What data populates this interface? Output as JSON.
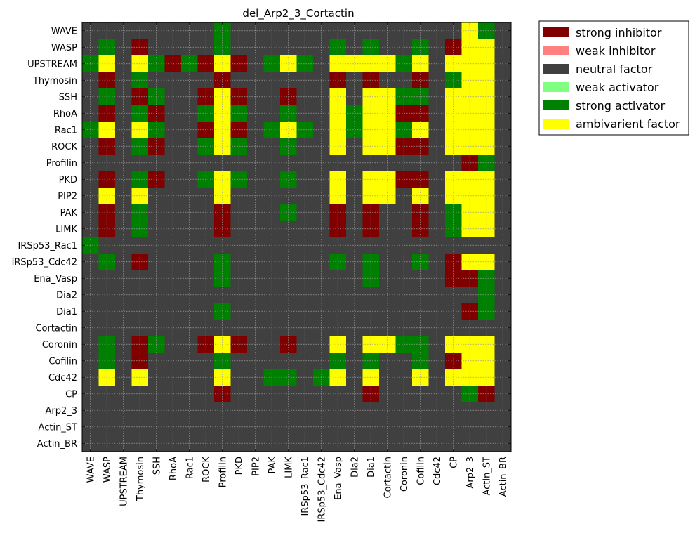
{
  "chart_data": {
    "type": "heatmap",
    "title": "del_Arp2_3_Cortactin",
    "rows": [
      "WAVE",
      "WASP",
      "UPSTREAM",
      "Thymosin",
      "SSH",
      "RhoA",
      "Rac1",
      "ROCK",
      "Profilin",
      "PKD",
      "PIP2",
      "PAK",
      "LIMK",
      "IRSp53_Rac1",
      "IRSp53_Cdc42",
      "Ena_Vasp",
      "Dia2",
      "Dia1",
      "Cortactin",
      "Coronin",
      "Cofilin",
      "Cdc42",
      "CP",
      "Arp2_3",
      "Actin_ST",
      "Actin_BR"
    ],
    "columns": [
      "WAVE",
      "WASP",
      "UPSTREAM",
      "Thymosin",
      "SSH",
      "RhoA",
      "Rac1",
      "ROCK",
      "Profilin",
      "PKD",
      "PIP2",
      "PAK",
      "LIMK",
      "IRSp53_Rac1",
      "IRSp53_Cdc42",
      "Ena_Vasp",
      "Dia2",
      "Dia1",
      "Cortactin",
      "Coronin",
      "Cofilin",
      "Cdc42",
      "CP",
      "Arp2_3",
      "Actin_ST",
      "Actin_BR"
    ],
    "categories": [
      {
        "code": "S",
        "label": "strong inhibitor",
        "color": "#800000"
      },
      {
        "code": "w",
        "label": "weak inhibitor",
        "color": "#ff8080"
      },
      {
        "code": "n",
        "label": "neutral factor",
        "color": "#404040"
      },
      {
        "code": "a",
        "label": "weak activator",
        "color": "#80ff80"
      },
      {
        "code": "A",
        "label": "strong activator",
        "color": "#008000"
      },
      {
        "code": "Y",
        "label": "ambivarient factor",
        "color": "#ffff00"
      }
    ],
    "matrix": [
      "nnnnnnnnAnnnnnnnnnnnnnnYAn",
      "nAnSnnnnAnnnnnnAnAnnAnSYYn",
      "AYnYASASYSnAYAnYYYYAYnYYYn",
      "nSnAnnnnSnnnnnnSnSnnSnAYYn",
      "nAnSAnnSYSnnSnnYnYYAAnYYYn",
      "nSnASnnAYAnnAnnYAYYSSnYYYn",
      "AYnYAnnSYSnAYAnYAYYAYnYYYn",
      "nSnASnnAYAnnAnnYnYYSSnYYYn",
      "nnnnnnnnnnnnnnnnnnnnnnnSAn",
      "nSnASnnAYAnnAnnYnYYSSnYYYn",
      "nYnYnnnnYnnnnnnYnYYnYnYYYn",
      "nSnAnnnnSnnnAnnSnSnnSnAYYn",
      "nSnAnnnnSnnnnnnSnSnnSnAYYn",
      "Annnnnnnnnnnnnnnnnnnnnnnnn",
      "nAnSnnnnAnnnnnnAnAnnAnSYYn",
      "nnnnnnnnAnnnnnnnnAnnnnSSAn",
      "nnnnnnnnnnnnnnnnnnnnnnnnAn",
      "nnnnnnnnAnnnnnnnnnnnnnnSAn",
      "nnnnnnnnnnnnnnnnnnnnnnnnnn",
      "nAnSAnnSYSnnSnnYnYYAAnYYYn",
      "nAnSnnnnAnnnnnnAnAnnAnSYYn",
      "nYnYnnnnYnnAAnAYnYnnYnYYYn",
      "nnnnnnnnSnnnnnnnnSnnnnnASn",
      "nnnnnnnnnnnnnnnnnnnnnnnnnn",
      "nnnnnnnnnnnnnnnnnnnnnnnnnn",
      "nnnnnnnnnnnnnnnnnnnnnnnnnn"
    ],
    "grid": true,
    "legend_position": "outside-right"
  }
}
